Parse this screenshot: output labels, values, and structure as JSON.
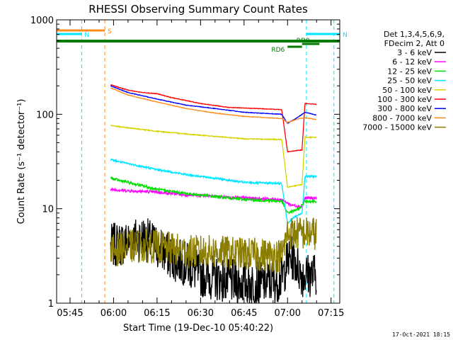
{
  "colors": {
    "background": "#ffffff",
    "axis": "#000000",
    "flag_cyan": "#00e5ff",
    "flag_orange": "#ff8c1a",
    "flag_green": "#007a00"
  },
  "chart_data": {
    "type": "line",
    "title": "RHESSI Observing Summary Count Rates",
    "xlabel": "Start Time (19-Dec-10 05:40:22)",
    "ylabel": "Count Rate (s⁻¹ detector⁻¹)",
    "y_scale": "log",
    "ylim": [
      1,
      1000
    ],
    "xlim": [
      "05:40:22",
      "07:18:00"
    ],
    "x_ticks": [
      "05:45",
      "06:00",
      "06:15",
      "06:30",
      "06:45",
      "07:00",
      "07:15"
    ],
    "y_ticks": [
      "1",
      "10",
      "100",
      "1000"
    ],
    "footer": "17-Oct-2021 18:15",
    "legend_header": [
      "Det 1,3,4,5,6,9,",
      "FDecim 2, Att 0"
    ],
    "legend_placement": "right",
    "flags": [
      {
        "label": "S",
        "color": "#ff8c1a",
        "start": "05:40:22",
        "end": "05:57:00"
      },
      {
        "label": "N",
        "color": "#00e5ff",
        "start": "05:40:22",
        "end": "05:49:00"
      },
      {
        "label": "N",
        "color": "#00e5ff",
        "start": "07:06:30",
        "end": "07:18:00"
      },
      {
        "label": "",
        "color": "#007a00",
        "start": "05:40:22",
        "end": "07:18:00"
      },
      {
        "label": "RD6",
        "color": "#007a00",
        "start": "07:00:00",
        "end": "07:05:00"
      },
      {
        "label": "RD0",
        "color": "#007a00",
        "start": "07:05:00",
        "end": "07:11:00"
      }
    ],
    "vlines": [
      {
        "t": "05:49:00",
        "color": "#00e5ff"
      },
      {
        "t": "05:57:00",
        "color": "#ff8c1a"
      },
      {
        "t": "07:06:30",
        "color": "#00e5ff"
      },
      {
        "t": "07:16:00",
        "color": "#00e5ff"
      }
    ],
    "series": [
      {
        "name": "3 - 6 keV",
        "color": "#000000",
        "noise": 0.6,
        "points": [
          [
            "05:59",
            "4"
          ],
          [
            "06:05",
            "4.5"
          ],
          [
            "06:10",
            "5"
          ],
          [
            "06:15",
            "4"
          ],
          [
            "06:20",
            "3"
          ],
          [
            "06:25",
            "2.6"
          ],
          [
            "06:30",
            "2"
          ],
          [
            "06:40",
            "1.7"
          ],
          [
            "06:50",
            "1.6"
          ],
          [
            "06:58",
            "1.8"
          ],
          [
            "07:00",
            "2.8"
          ],
          [
            "07:02",
            "3"
          ],
          [
            "07:05",
            "2"
          ],
          [
            "07:10",
            "2"
          ]
        ]
      },
      {
        "name": "6 - 12 keV",
        "color": "#ff00ff",
        "noise": 0.15,
        "points": [
          [
            "05:59",
            "16"
          ],
          [
            "06:05",
            "15.5"
          ],
          [
            "06:15",
            "15"
          ],
          [
            "06:25",
            "14"
          ],
          [
            "06:35",
            "13.5"
          ],
          [
            "06:45",
            "13"
          ],
          [
            "06:58",
            "12.5"
          ],
          [
            "07:01",
            "11"
          ],
          [
            "07:05",
            "10.5"
          ],
          [
            "07:06",
            "13"
          ],
          [
            "07:10",
            "13"
          ]
        ]
      },
      {
        "name": "12 - 25 keV",
        "color": "#00e000",
        "noise": 0.15,
        "points": [
          [
            "05:59",
            "21"
          ],
          [
            "06:05",
            "19"
          ],
          [
            "06:15",
            "16"
          ],
          [
            "06:25",
            "14.5"
          ],
          [
            "06:35",
            "13.5"
          ],
          [
            "06:45",
            "12.5"
          ],
          [
            "06:58",
            "12"
          ],
          [
            "07:00",
            "9"
          ],
          [
            "07:04",
            "10"
          ],
          [
            "07:06",
            "12"
          ],
          [
            "07:10",
            "12"
          ]
        ]
      },
      {
        "name": "25 - 50 keV",
        "color": "#00e5ff",
        "noise": 0.1,
        "points": [
          [
            "05:59",
            "33"
          ],
          [
            "06:05",
            "30"
          ],
          [
            "06:15",
            "26"
          ],
          [
            "06:25",
            "23"
          ],
          [
            "06:35",
            "21"
          ],
          [
            "06:45",
            "19"
          ],
          [
            "06:58",
            "18.5"
          ],
          [
            "07:00",
            "7"
          ],
          [
            "07:02",
            "8"
          ],
          [
            "07:05",
            "9"
          ],
          [
            "07:06",
            "22"
          ],
          [
            "07:10",
            "22"
          ]
        ]
      },
      {
        "name": "50 - 100 keV",
        "color": "#d4d400",
        "noise": 0.05,
        "points": [
          [
            "05:59",
            "76"
          ],
          [
            "06:05",
            "72"
          ],
          [
            "06:15",
            "66"
          ],
          [
            "06:30",
            "60"
          ],
          [
            "06:45",
            "55"
          ],
          [
            "06:58",
            "54"
          ],
          [
            "07:00",
            "17"
          ],
          [
            "07:05",
            "18"
          ],
          [
            "07:06",
            "57"
          ],
          [
            "07:10",
            "57"
          ]
        ]
      },
      {
        "name": "100 - 300 keV",
        "color": "#ff0000",
        "noise": 0.03,
        "points": [
          [
            "05:59",
            "205"
          ],
          [
            "06:05",
            "180"
          ],
          [
            "06:10",
            "170"
          ],
          [
            "06:15",
            "165"
          ],
          [
            "06:20",
            "150"
          ],
          [
            "06:25",
            "140"
          ],
          [
            "06:30",
            "130"
          ],
          [
            "06:40",
            "118"
          ],
          [
            "06:50",
            "115"
          ],
          [
            "06:58",
            "112"
          ],
          [
            "07:00",
            "40"
          ],
          [
            "07:05",
            "42"
          ],
          [
            "07:06",
            "130"
          ],
          [
            "07:10",
            "128"
          ]
        ]
      },
      {
        "name": "300 - 800 keV",
        "color": "#0000ff",
        "noise": 0.03,
        "points": [
          [
            "05:59",
            "200"
          ],
          [
            "06:05",
            "170"
          ],
          [
            "06:15",
            "145"
          ],
          [
            "06:25",
            "125"
          ],
          [
            "06:35",
            "115"
          ],
          [
            "06:45",
            "105"
          ],
          [
            "06:58",
            "100"
          ],
          [
            "07:00",
            "80"
          ],
          [
            "07:04",
            "95"
          ],
          [
            "07:06",
            "105"
          ],
          [
            "07:10",
            "98"
          ]
        ]
      },
      {
        "name": "800 - 7000 keV",
        "color": "#ff8c1a",
        "noise": 0.03,
        "points": [
          [
            "05:59",
            "190"
          ],
          [
            "06:05",
            "160"
          ],
          [
            "06:15",
            "135"
          ],
          [
            "06:25",
            "115"
          ],
          [
            "06:35",
            "103"
          ],
          [
            "06:45",
            "95"
          ],
          [
            "06:58",
            "90"
          ],
          [
            "07:00",
            "82"
          ],
          [
            "07:04",
            "90"
          ],
          [
            "07:06",
            "92"
          ],
          [
            "07:10",
            "88"
          ]
        ]
      },
      {
        "name": "7000 - 15000 keV",
        "color": "#8b7d00",
        "noise": 0.45,
        "points": [
          [
            "05:59",
            "3.5"
          ],
          [
            "06:05",
            "4"
          ],
          [
            "06:15",
            "4"
          ],
          [
            "06:25",
            "3.5"
          ],
          [
            "06:35",
            "3.5"
          ],
          [
            "06:45",
            "3.3"
          ],
          [
            "06:58",
            "3.2"
          ],
          [
            "07:00",
            "5.5"
          ],
          [
            "07:05",
            "5.5"
          ],
          [
            "07:10",
            "5.5"
          ]
        ]
      }
    ]
  }
}
